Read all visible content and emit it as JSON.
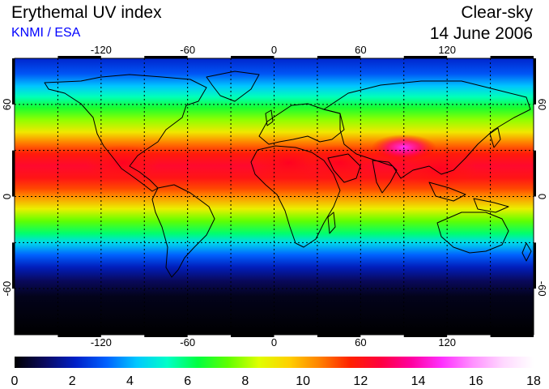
{
  "header": {
    "title": "Erythemal UV index",
    "subtitle": "KNMI / ESA",
    "subtitle_color": "#0000ff",
    "condition": "Clear-sky",
    "date": "14 June 2006"
  },
  "map": {
    "projection": "equirectangular",
    "lon_range": [
      -180,
      180
    ],
    "lat_range": [
      -90,
      90
    ],
    "grid_lines": true,
    "grid_style": "dotted",
    "lon_ticks": [
      -120,
      -60,
      0,
      60,
      120
    ],
    "lat_ticks": [
      60,
      0,
      -60
    ],
    "lon_tick_labels": [
      "-120",
      "-60",
      "0",
      "60",
      "120"
    ],
    "lat_tick_labels": [
      "60",
      "0",
      "-60"
    ]
  },
  "colorbar": {
    "min": 0,
    "max": 18,
    "tick_values": [
      0,
      2,
      4,
      6,
      8,
      10,
      12,
      14,
      16,
      18
    ],
    "tick_labels": [
      "0",
      "2",
      "4",
      "6",
      "8",
      "10",
      "12",
      "14",
      "16",
      "18"
    ],
    "colors": [
      "#000000",
      "#0a0a60",
      "#0020c8",
      "#0060ff",
      "#00c8ff",
      "#00ffc8",
      "#00ff40",
      "#60ff00",
      "#e0ff00",
      "#ffd000",
      "#ff8000",
      "#ff2000",
      "#ff0040",
      "#ff00a0",
      "#ff30ff",
      "#ff90ff",
      "#ffd8ff",
      "#ffffff"
    ]
  },
  "uv_bands": [
    {
      "lat": 90,
      "uv": 2.2
    },
    {
      "lat": 80,
      "uv": 3.0
    },
    {
      "lat": 72,
      "uv": 4.2
    },
    {
      "lat": 65,
      "uv": 5.4
    },
    {
      "lat": 58,
      "uv": 6.6
    },
    {
      "lat": 50,
      "uv": 7.8
    },
    {
      "lat": 42,
      "uv": 9.0
    },
    {
      "lat": 35,
      "uv": 10.6
    },
    {
      "lat": 28,
      "uv": 11.8
    },
    {
      "lat": 20,
      "uv": 12.4
    },
    {
      "lat": 12,
      "uv": 12.0
    },
    {
      "lat": 5,
      "uv": 11.2
    },
    {
      "lat": 0,
      "uv": 10.4
    },
    {
      "lat": -8,
      "uv": 8.8
    },
    {
      "lat": -16,
      "uv": 7.4
    },
    {
      "lat": -24,
      "uv": 6.0
    },
    {
      "lat": -30,
      "uv": 4.6
    },
    {
      "lat": -38,
      "uv": 3.2
    },
    {
      "lat": -46,
      "uv": 2.0
    },
    {
      "lat": -55,
      "uv": 1.0
    },
    {
      "lat": -65,
      "uv": 0.3
    },
    {
      "lat": -90,
      "uv": 0.0
    }
  ],
  "hotspots": [
    {
      "name": "tibet",
      "lon": 90,
      "lat": 32,
      "uv": 16.0
    },
    {
      "name": "sahara",
      "lon": 10,
      "lat": 22,
      "uv": 12.8
    },
    {
      "name": "arabia",
      "lon": 45,
      "lat": 22,
      "uv": 13.0
    },
    {
      "name": "mexico",
      "lon": -105,
      "lat": 22,
      "uv": 12.8
    },
    {
      "name": "southeast-asia",
      "lon": 115,
      "lat": 18,
      "uv": 12.6
    }
  ]
}
